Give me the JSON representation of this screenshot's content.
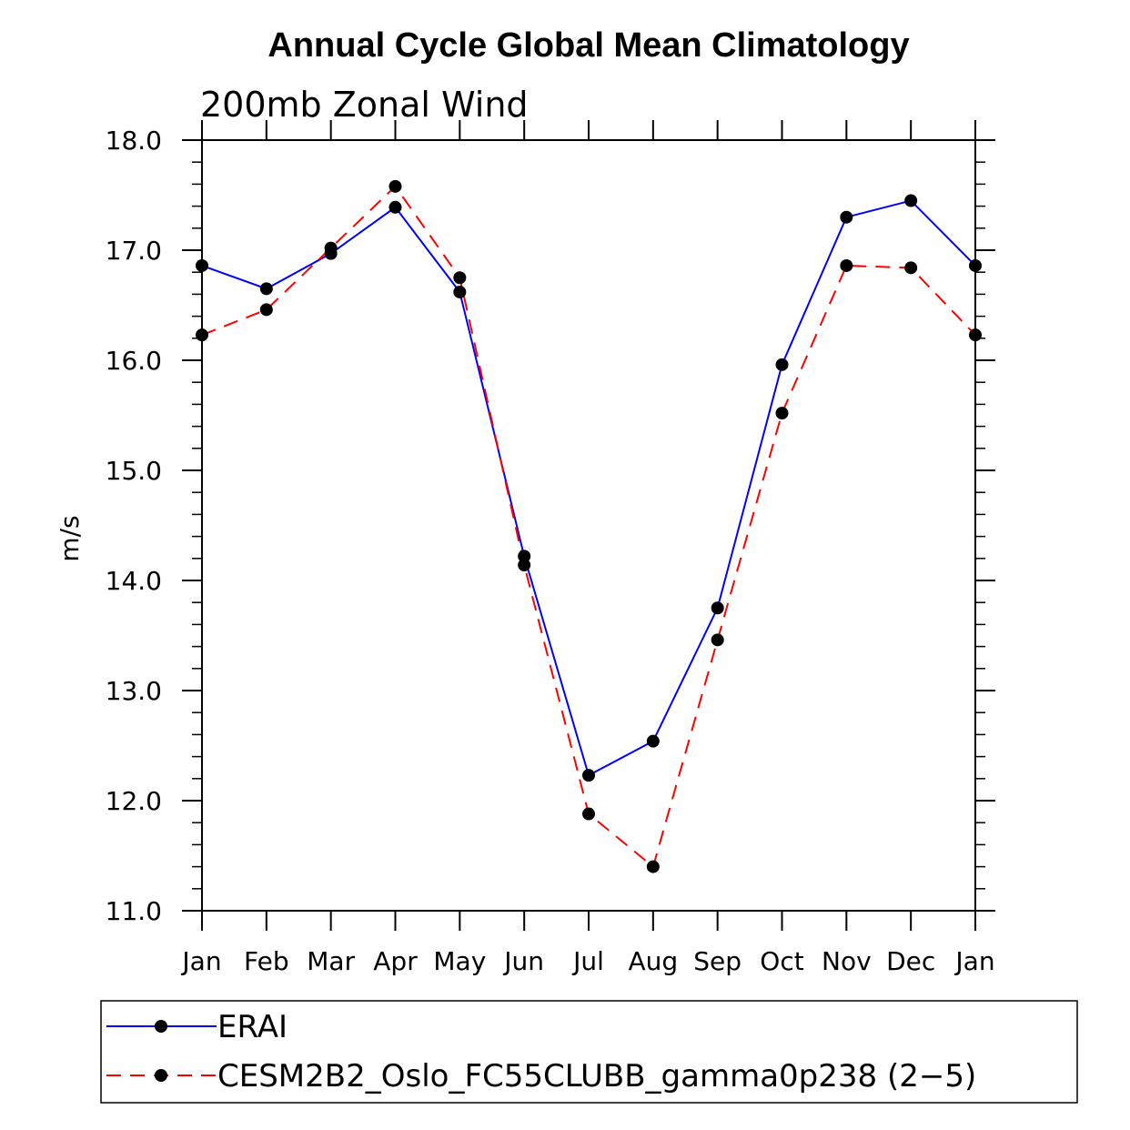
{
  "chart_data": {
    "type": "line",
    "title": "Annual Cycle Global Mean Climatology",
    "subtitle": "200mb Zonal Wind",
    "xlabel": "",
    "ylabel": "m/s",
    "categories": [
      "Jan",
      "Feb",
      "Mar",
      "Apr",
      "May",
      "Jun",
      "Jul",
      "Aug",
      "Sep",
      "Oct",
      "Nov",
      "Dec",
      "Jan"
    ],
    "ylim": [
      11.0,
      18.0
    ],
    "yticks": [
      "11.0",
      "12.0",
      "13.0",
      "14.0",
      "15.0",
      "16.0",
      "17.0",
      "18.0"
    ],
    "grid": false,
    "legend_position": "bottom",
    "series": [
      {
        "name": "ERAI",
        "color": "#0000ff",
        "dash": "solid",
        "values": [
          16.86,
          16.65,
          16.97,
          17.39,
          16.62,
          14.22,
          12.23,
          12.54,
          13.75,
          15.96,
          17.3,
          17.45,
          16.86
        ]
      },
      {
        "name": "CESM2B2_Oslo_FC55CLUBB_gamma0p238 (2−5)",
        "color": "#ff0000",
        "dash": "dashed",
        "values": [
          16.23,
          16.46,
          17.02,
          17.58,
          16.75,
          14.14,
          11.88,
          11.4,
          13.46,
          15.52,
          16.86,
          16.84,
          16.23
        ]
      }
    ],
    "marker_color": "#000000"
  }
}
